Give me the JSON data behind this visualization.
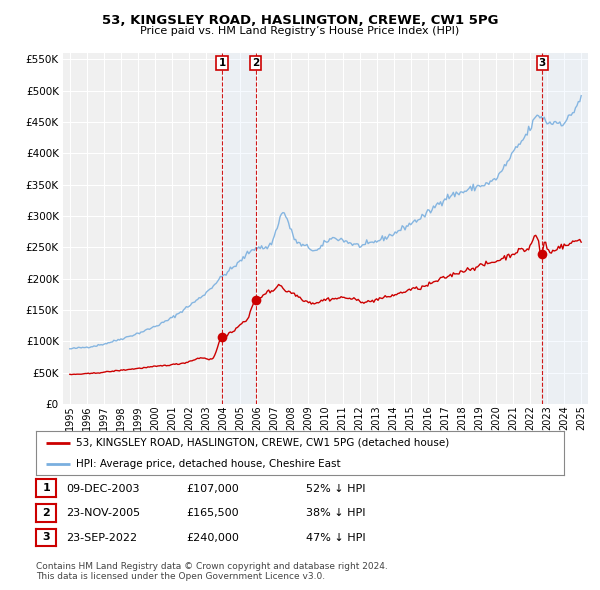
{
  "title": "53, KINGSLEY ROAD, HASLINGTON, CREWE, CW1 5PG",
  "subtitle": "Price paid vs. HM Land Registry’s House Price Index (HPI)",
  "legend_label_red": "53, KINGSLEY ROAD, HASLINGTON, CREWE, CW1 5PG (detached house)",
  "legend_label_blue": "HPI: Average price, detached house, Cheshire East",
  "footer": "Contains HM Land Registry data © Crown copyright and database right 2024.\nThis data is licensed under the Open Government Licence v3.0.",
  "transactions": [
    {
      "num": 1,
      "date": "09-DEC-2003",
      "price": "£107,000",
      "pct": "52% ↓ HPI",
      "year_f": 2003.936
    },
    {
      "num": 2,
      "date": "23-NOV-2005",
      "price": "£165,500",
      "pct": "38% ↓ HPI",
      "year_f": 2005.894
    },
    {
      "num": 3,
      "date": "23-SEP-2022",
      "price": "£240,000",
      "pct": "47% ↓ HPI",
      "year_f": 2022.722
    }
  ],
  "transaction_values": [
    107000,
    165500,
    240000
  ],
  "ylim": [
    0,
    560000
  ],
  "yticks": [
    0,
    50000,
    100000,
    150000,
    200000,
    250000,
    300000,
    350000,
    400000,
    450000,
    500000,
    550000
  ],
  "xlim_start": 1994.6,
  "xlim_end": 2025.4,
  "xticks": [
    1995,
    1996,
    1997,
    1998,
    1999,
    2000,
    2001,
    2002,
    2003,
    2004,
    2005,
    2006,
    2007,
    2008,
    2009,
    2010,
    2011,
    2012,
    2013,
    2014,
    2015,
    2016,
    2017,
    2018,
    2019,
    2020,
    2021,
    2022,
    2023,
    2024,
    2025
  ],
  "bg_color": "#ffffff",
  "plot_bg": "#f0f0f0",
  "grid_color": "#ffffff",
  "red_color": "#cc0000",
  "blue_color": "#7aafdf",
  "vline_color": "#cc0000",
  "highlight_blue": "#ddeeff",
  "highlight_red": "#ffdddd",
  "marker_box_color": "#cc0000"
}
